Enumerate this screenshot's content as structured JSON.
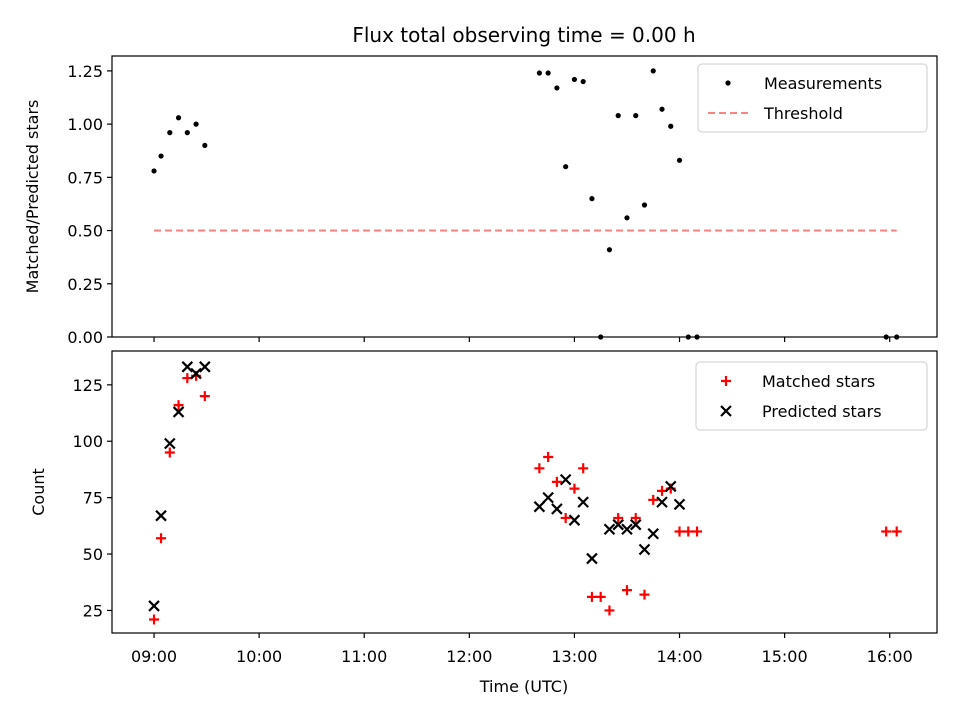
{
  "chart_data": {
    "type": "scatter",
    "title": "Flux total observing time = 0.00 h",
    "xlabel": "Time (UTC)",
    "x_ticks": [
      "09:00",
      "10:00",
      "11:00",
      "12:00",
      "13:00",
      "14:00",
      "15:00",
      "16:00"
    ],
    "x_range_hours": [
      8.6,
      16.45
    ],
    "grid": false,
    "panels": [
      {
        "name": "ratio",
        "ylabel": "Matched/Predicted stars",
        "ylim": [
          0.0,
          1.32
        ],
        "y_ticks": [
          "0.00",
          "0.25",
          "0.50",
          "0.75",
          "1.00",
          "1.25"
        ],
        "legend_position": "top-right",
        "series": [
          {
            "name": "Measurements",
            "marker": "dot",
            "color": "#000000",
            "points": [
              [
                "09:00",
                0.78
              ],
              [
                "09:04",
                0.85
              ],
              [
                "09:09",
                0.96
              ],
              [
                "09:14",
                1.03
              ],
              [
                "09:19",
                0.96
              ],
              [
                "09:24",
                1.0
              ],
              [
                "09:29",
                0.9
              ],
              [
                "12:40",
                1.24
              ],
              [
                "12:45",
                1.24
              ],
              [
                "12:50",
                1.17
              ],
              [
                "12:55",
                0.8
              ],
              [
                "13:00",
                1.21
              ],
              [
                "13:05",
                1.2
              ],
              [
                "13:10",
                0.65
              ],
              [
                "13:15",
                0.0
              ],
              [
                "13:20",
                0.41
              ],
              [
                "13:25",
                1.04
              ],
              [
                "13:30",
                0.56
              ],
              [
                "13:35",
                1.04
              ],
              [
                "13:40",
                0.62
              ],
              [
                "13:45",
                1.25
              ],
              [
                "13:50",
                1.07
              ],
              [
                "13:55",
                0.99
              ],
              [
                "14:00",
                0.83
              ],
              [
                "14:05",
                0.0
              ],
              [
                "14:10",
                0.0
              ],
              [
                "15:58",
                0.0
              ],
              [
                "16:04",
                0.0
              ]
            ]
          },
          {
            "name": "Threshold",
            "style": "dashed-line",
            "color": "#ff8080",
            "points": [
              [
                "09:00",
                0.5
              ],
              [
                "16:04",
                0.5
              ]
            ]
          }
        ]
      },
      {
        "name": "counts",
        "ylabel": "Count",
        "ylim": [
          15,
          140
        ],
        "y_ticks": [
          "25",
          "50",
          "75",
          "100",
          "125"
        ],
        "legend_position": "top-right",
        "series": [
          {
            "name": "Matched stars",
            "marker": "plus",
            "color": "#ff0000",
            "points": [
              [
                "09:00",
                21
              ],
              [
                "09:04",
                57
              ],
              [
                "09:09",
                95
              ],
              [
                "09:14",
                116
              ],
              [
                "09:19",
                128
              ],
              [
                "09:24",
                129
              ],
              [
                "09:29",
                120
              ],
              [
                "12:40",
                88
              ],
              [
                "12:45",
                93
              ],
              [
                "12:50",
                82
              ],
              [
                "12:55",
                66
              ],
              [
                "13:00",
                79
              ],
              [
                "13:05",
                88
              ],
              [
                "13:10",
                31
              ],
              [
                "13:15",
                31
              ],
              [
                "13:20",
                25
              ],
              [
                "13:25",
                66
              ],
              [
                "13:30",
                34
              ],
              [
                "13:35",
                66
              ],
              [
                "13:40",
                32
              ],
              [
                "13:45",
                74
              ],
              [
                "13:50",
                78
              ],
              [
                "13:55",
                79
              ],
              [
                "14:00",
                60
              ],
              [
                "14:05",
                60
              ],
              [
                "14:10",
                60
              ],
              [
                "15:58",
                60
              ],
              [
                "16:04",
                60
              ]
            ]
          },
          {
            "name": "Predicted stars",
            "marker": "x",
            "color": "#000000",
            "points": [
              [
                "09:00",
                27
              ],
              [
                "09:04",
                67
              ],
              [
                "09:09",
                99
              ],
              [
                "09:14",
                113
              ],
              [
                "09:19",
                133
              ],
              [
                "09:24",
                130
              ],
              [
                "09:29",
                133
              ],
              [
                "12:40",
                71
              ],
              [
                "12:45",
                75
              ],
              [
                "12:50",
                70
              ],
              [
                "12:55",
                83
              ],
              [
                "13:00",
                65
              ],
              [
                "13:05",
                73
              ],
              [
                "13:10",
                48
              ],
              [
                "13:20",
                61
              ],
              [
                "13:25",
                63
              ],
              [
                "13:30",
                61
              ],
              [
                "13:35",
                63
              ],
              [
                "13:40",
                52
              ],
              [
                "13:45",
                59
              ],
              [
                "13:50",
                73
              ],
              [
                "13:55",
                80
              ],
              [
                "14:00",
                72
              ]
            ]
          }
        ]
      }
    ]
  }
}
